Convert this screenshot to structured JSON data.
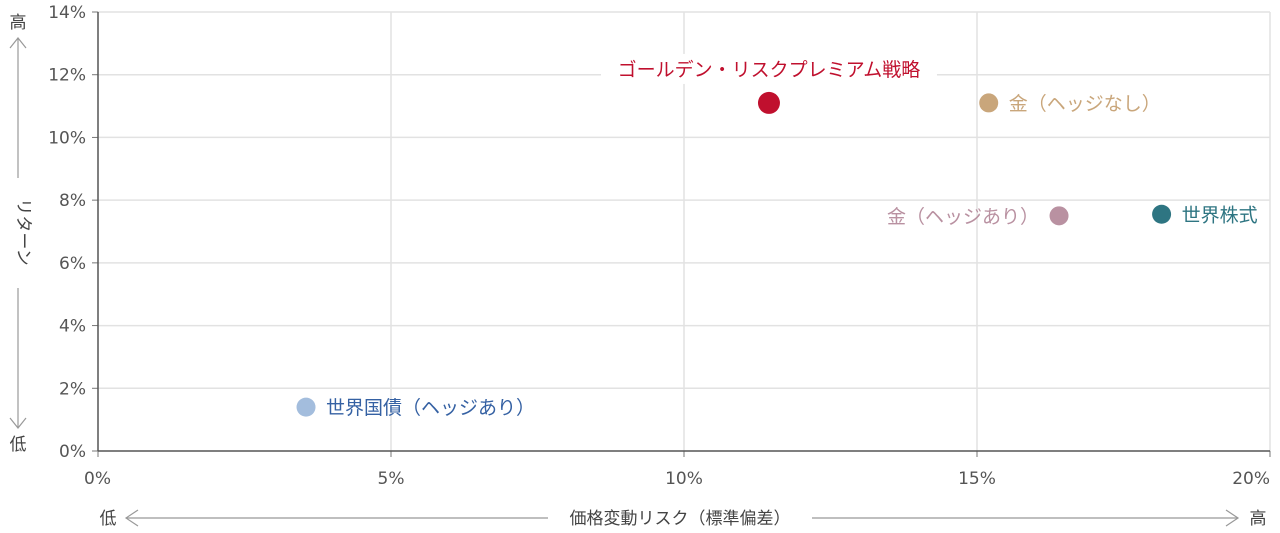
{
  "chart_data": {
    "type": "scatter",
    "xlabel": "価格変動リスク（標準偏差）",
    "ylabel": "リターン",
    "x_low_label": "低",
    "x_high_label": "高",
    "y_low_label": "低",
    "y_high_label": "高",
    "xlim": [
      0,
      20
    ],
    "ylim": [
      0,
      14
    ],
    "x_ticks": [
      "0%",
      "5%",
      "10%",
      "15%",
      "20%"
    ],
    "y_ticks": [
      "0%",
      "2%",
      "4%",
      "6%",
      "8%",
      "10%",
      "12%",
      "14%"
    ],
    "x_tick_values": [
      0,
      5,
      10,
      15,
      20
    ],
    "y_tick_values": [
      0,
      2,
      4,
      6,
      8,
      10,
      12,
      14
    ],
    "grid": true,
    "points": [
      {
        "label": "ゴールデン・リスクプレミアム戦略",
        "x": 11.45,
        "y": 11.1,
        "color": "#c0102e",
        "label_pos": "above"
      },
      {
        "label": "金（ヘッジなし）",
        "x": 15.2,
        "y": 11.1,
        "color": "#c9a67b",
        "label_pos": "right"
      },
      {
        "label": "金（ヘッジあり）",
        "x": 16.4,
        "y": 7.5,
        "color": "#b991a1",
        "label_pos": "left"
      },
      {
        "label": "世界株式",
        "x": 18.15,
        "y": 7.55,
        "color": "#2e7582",
        "label_pos": "right"
      },
      {
        "label": "世界国債（ヘッジあり）",
        "x": 3.55,
        "y": 1.4,
        "color": "#a3bddd",
        "label_pos": "right",
        "label_color": "#3561a3"
      }
    ]
  }
}
